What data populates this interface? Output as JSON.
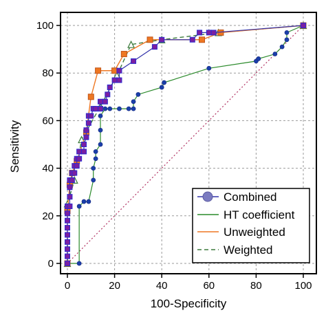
{
  "chart_data": {
    "type": "line",
    "xlabel": "100-Specificity",
    "ylabel": "Sensitivity",
    "xlim": [
      0,
      100
    ],
    "ylim": [
      0,
      100
    ],
    "xticks": [
      "0",
      "20",
      "40",
      "60",
      "80",
      "100"
    ],
    "yticks": [
      "0",
      "20",
      "40",
      "60",
      "80",
      "100"
    ],
    "grid": true,
    "legend_position": "bottom-right",
    "reference_line": {
      "style": "dotted",
      "color": "#b03060",
      "from": [
        0,
        0
      ],
      "to": [
        100,
        100
      ]
    },
    "series": [
      {
        "name": "Combined",
        "color": "#3333aa",
        "marker": "square",
        "marker_fill": "#7a1fa2",
        "x": [
          0,
          0,
          0,
          0,
          0,
          0,
          0,
          0,
          0,
          1,
          1,
          1,
          1,
          2,
          2,
          3,
          3,
          4,
          4,
          5,
          5,
          7,
          7,
          8,
          8,
          9,
          9,
          10,
          11,
          12,
          14,
          14,
          16,
          17,
          18,
          20,
          22,
          22,
          28,
          37,
          40,
          53,
          56,
          60,
          62,
          100
        ],
        "y": [
          0,
          3,
          6,
          9,
          12,
          15,
          18,
          21,
          24,
          24,
          28,
          32,
          35,
          35,
          38,
          38,
          41,
          41,
          44,
          44,
          47,
          47,
          50,
          53,
          56,
          59,
          62,
          62,
          65,
          65,
          65,
          68,
          68,
          71,
          74,
          77,
          77,
          81,
          85,
          91,
          94,
          94,
          97,
          97,
          97,
          100
        ]
      },
      {
        "name": "HT coefficient",
        "color": "#2a8a2a",
        "marker": "circle",
        "marker_fill": "#1a3faa",
        "x": [
          0,
          5,
          5,
          7,
          9,
          11,
          11,
          12,
          12,
          14,
          14,
          14,
          16,
          18,
          22,
          26,
          28,
          28,
          30,
          40,
          41,
          60,
          80,
          81,
          88,
          91,
          93,
          93,
          100
        ],
        "y": [
          0,
          0,
          24,
          26,
          26,
          35,
          40,
          44,
          47,
          50,
          56,
          62,
          65,
          65,
          65,
          65,
          65,
          68,
          71,
          74,
          76,
          82,
          85,
          86,
          88,
          91,
          94,
          97,
          100
        ]
      },
      {
        "name": "Unweighted",
        "color": "#ee7722",
        "marker": "square",
        "marker_fill": "#ee7722",
        "x": [
          0,
          0,
          1,
          2,
          4,
          8,
          10,
          13,
          20,
          24,
          35,
          57,
          65,
          100
        ],
        "y": [
          0,
          22,
          33,
          38,
          43,
          55,
          70,
          81,
          81,
          88,
          94,
          94,
          97,
          100
        ]
      },
      {
        "name": "Weighted",
        "color": "#3b7a3b",
        "marker": "triangle",
        "marker_fill": "#ffffff",
        "x": [
          0,
          0,
          3,
          6,
          14,
          21,
          27,
          40,
          64,
          100
        ],
        "y": [
          0,
          25,
          35,
          52,
          66,
          79,
          92,
          94,
          97,
          100
        ]
      }
    ]
  }
}
